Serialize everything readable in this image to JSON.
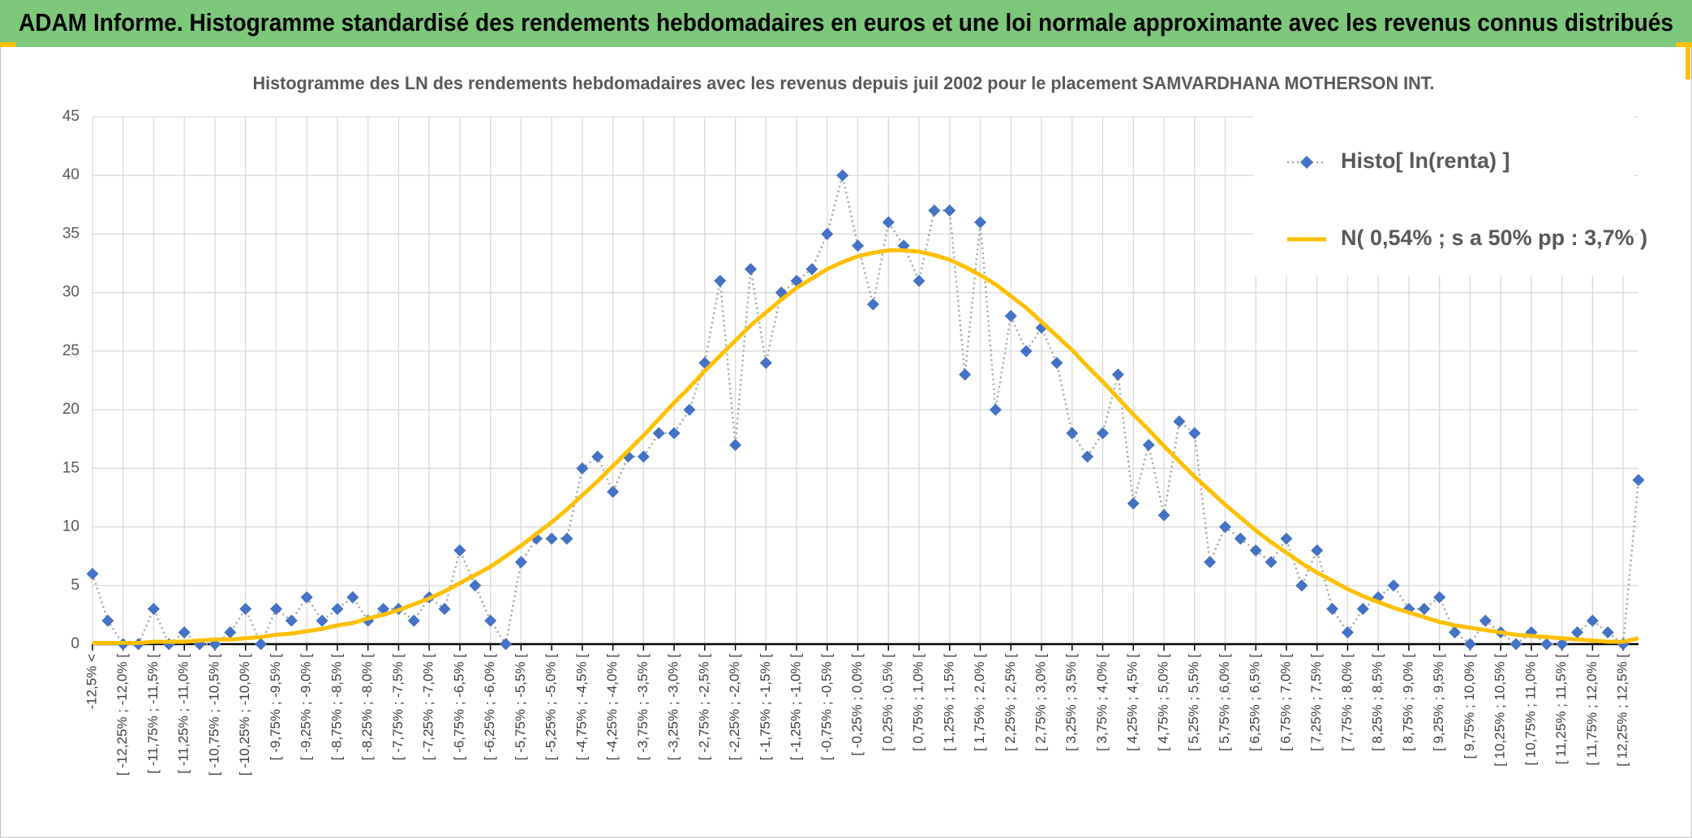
{
  "chart_data": {
    "type": "line",
    "title": "ADAM Informe. Histogramme standardisé des rendements hebdomadaires en euros et une loi normale approximante avec les revenus connus distribués",
    "subtitle": "Histogramme des LN des rendements hebdomadaires avec les revenus depuis juil 2002 pour le placement SAMVARDHANA MOTHERSON INT.",
    "categories": [
      "-12,5% <",
      null,
      "[ -12,25% ; -12,0% [",
      null,
      "[ -11,75% ; -11,5% [",
      null,
      "[ -11,25% ; -11,0% [",
      null,
      "[ -10,75% ; -10,5% [",
      null,
      "[ -10,25% ; -10,0% [",
      null,
      "[ -9,75% ; -9,5% [",
      null,
      "[ -9,25% ; -9,0% [",
      null,
      "[ -8,75% ; -8,5% [",
      null,
      "[ -8,25% ; -8,0% [",
      null,
      "[ -7,75% ; -7,5% [",
      null,
      "[ -7,25% ; -7,0% [",
      null,
      "[ -6,75% ; -6,5% [",
      null,
      "[ -6,25% ; -6,0% [",
      null,
      "[ -5,75% ; -5,5% [",
      null,
      "[ -5,25% ; -5,0% [",
      null,
      "[ -4,75% ; -4,5% [",
      null,
      "[ -4,25% ; -4,0% [",
      null,
      "[ -3,75% ; -3,5% [",
      null,
      "[ -3,25% ; -3,0% [",
      null,
      "[ -2,75% ; -2,5% [",
      null,
      "[ -2,25% ; -2,0% [",
      null,
      "[ -1,75% ; -1,5% [",
      null,
      "[ -1,25% ; -1,0% [",
      null,
      "[ -0,75% ; -0,5% [",
      null,
      "[ -0,25% ; 0,0% [",
      null,
      "[ 0,25% ; 0,5% [",
      null,
      "[ 0,75% ; 1,0% [",
      null,
      "[ 1,25% ; 1,5% [",
      null,
      "[ 1,75% ; 2,0% [",
      null,
      "[ 2,25% ; 2,5% [",
      null,
      "[ 2,75% ; 3,0% [",
      null,
      "[ 3,25% ; 3,5% [",
      null,
      "[ 3,75% ; 4,0% [",
      null,
      "[ 4,25% ; 4,5% [",
      null,
      "[ 4,75% ; 5,0% [",
      null,
      "[ 5,25% ; 5,5% [",
      null,
      "[ 5,75% ; 6,0% [",
      null,
      "[ 6,25% ; 6,5% [",
      null,
      "[ 6,75% ; 7,0% [",
      null,
      "[ 7,25% ; 7,5% [",
      null,
      "[ 7,75% ; 8,0% [",
      null,
      "[ 8,25% ; 8,5% [",
      null,
      "[ 8,75% ; 9,0% [",
      null,
      "[ 9,25% ; 9,5% [",
      null,
      "[ 9,75% ; 10,0% [",
      null,
      "[ 10,25% ; 10,5% [",
      null,
      "[ 10,75% ; 11,0% [",
      null,
      "[ 11,25% ; 11,5% [",
      null,
      "[ 11,75% ; 12,0% [",
      null,
      "[ 12,25% ; 12,5% [",
      null
    ],
    "series": [
      {
        "name": "Histo[ ln(renta) ]",
        "color": "#4472c4",
        "values": [
          6,
          2,
          0,
          0,
          3,
          0,
          1,
          0,
          0,
          1,
          3,
          0,
          3,
          2,
          4,
          2,
          3,
          4,
          2,
          3,
          3,
          2,
          4,
          3,
          8,
          5,
          2,
          0,
          7,
          9,
          9,
          9,
          15,
          16,
          13,
          16,
          16,
          18,
          18,
          20,
          24,
          31,
          17,
          32,
          24,
          30,
          31,
          32,
          35,
          40,
          34,
          29,
          36,
          34,
          31,
          37,
          37,
          23,
          36,
          20,
          28,
          25,
          27,
          24,
          18,
          16,
          18,
          23,
          12,
          17,
          11,
          19,
          18,
          7,
          10,
          9,
          8,
          7,
          9,
          5,
          8,
          3,
          1,
          3,
          4,
          5,
          3,
          3,
          4,
          1,
          0,
          2,
          1,
          0,
          1,
          0,
          0,
          1,
          2,
          1,
          0,
          14
        ]
      },
      {
        "name": "N( 0,54% ; s a 50% pp : 3,7% )",
        "color": "#ffc000",
        "values": [
          0.1,
          0.1,
          0.1,
          0.1,
          0.2,
          0.2,
          0.2,
          0.3,
          0.4,
          0.4,
          0.5,
          0.6,
          0.8,
          0.9,
          1.1,
          1.3,
          1.6,
          1.8,
          2.2,
          2.5,
          2.9,
          3.4,
          3.9,
          4.5,
          5.2,
          5.9,
          6.6,
          7.5,
          8.4,
          9.4,
          10.4,
          11.5,
          12.7,
          13.9,
          15.2,
          16.5,
          17.8,
          19.2,
          20.6,
          21.9,
          23.3,
          24.6,
          25.9,
          27.2,
          28.3,
          29.4,
          30.4,
          31.2,
          32.0,
          32.6,
          33.1,
          33.4,
          33.6,
          33.6,
          33.5,
          33.2,
          32.8,
          32.2,
          31.5,
          30.7,
          29.7,
          28.7,
          27.5,
          26.3,
          25.1,
          23.7,
          22.4,
          21.0,
          19.6,
          18.3,
          16.9,
          15.6,
          14.3,
          13.1,
          11.9,
          10.8,
          9.7,
          8.7,
          7.8,
          6.9,
          6.1,
          5.4,
          4.7,
          4.1,
          3.6,
          3.1,
          2.7,
          2.3,
          1.9,
          1.6,
          1.4,
          1.2,
          1.0,
          0.8,
          0.7,
          0.6,
          0.5,
          0.4,
          0.3,
          0.2,
          0.2,
          0.5
        ]
      }
    ],
    "ylim": [
      0,
      45
    ],
    "yticks": [
      0,
      5,
      10,
      15,
      20,
      25,
      30,
      35,
      40,
      45
    ],
    "grid": true,
    "legend": "upper right"
  }
}
